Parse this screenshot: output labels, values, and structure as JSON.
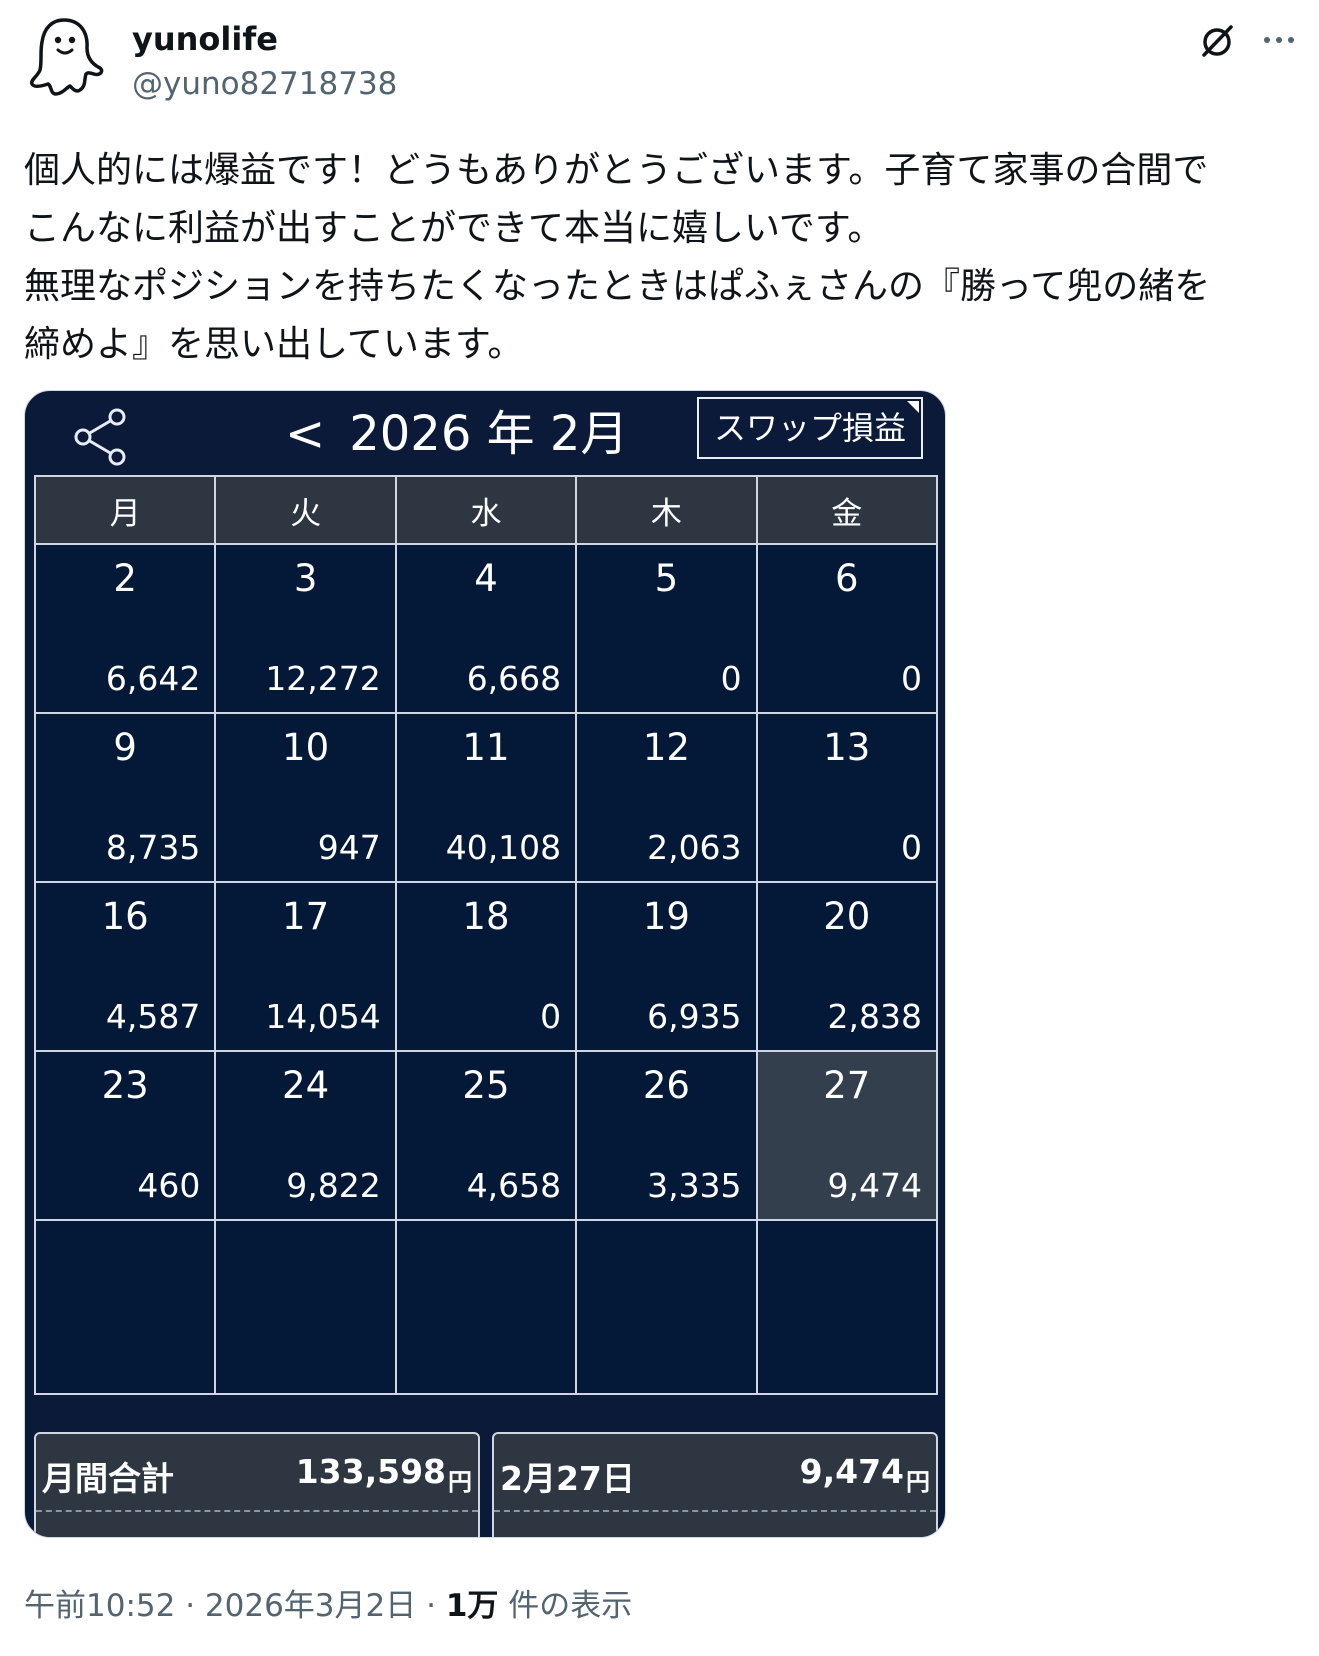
{
  "author": {
    "name": "yunolife",
    "handle": "@yuno82718738",
    "avatar_icon": "ghost-avatar-icon"
  },
  "header_icons": {
    "grok": "grok-icon",
    "more": "more-options-icon"
  },
  "post": {
    "lines": [
      "個人的には爆益です！どうもありがとうございます。子育て家事の合間で",
      "こんなに利益が出すことができて本当に嬉しいです。",
      "無理なポジションを持ちたくなったときはぱふぇさんの『勝って兜の緒を",
      "締めよ』を思い出しています。"
    ]
  },
  "app": {
    "share_icon": "share-icon",
    "prev": "<",
    "month_title": "2026 年 2月",
    "swap_button": "スワップ損益",
    "weekdays": [
      "月",
      "火",
      "水",
      "木",
      "金"
    ],
    "weeks": [
      [
        {
          "day": "2",
          "value": "6,642"
        },
        {
          "day": "3",
          "value": "12,272"
        },
        {
          "day": "4",
          "value": "6,668"
        },
        {
          "day": "5",
          "value": "0"
        },
        {
          "day": "6",
          "value": "0"
        }
      ],
      [
        {
          "day": "9",
          "value": "8,735"
        },
        {
          "day": "10",
          "value": "947"
        },
        {
          "day": "11",
          "value": "40,108"
        },
        {
          "day": "12",
          "value": "2,063"
        },
        {
          "day": "13",
          "value": "0"
        }
      ],
      [
        {
          "day": "16",
          "value": "4,587"
        },
        {
          "day": "17",
          "value": "14,054"
        },
        {
          "day": "18",
          "value": "0"
        },
        {
          "day": "19",
          "value": "6,935"
        },
        {
          "day": "20",
          "value": "2,838"
        }
      ],
      [
        {
          "day": "23",
          "value": "460"
        },
        {
          "day": "24",
          "value": "9,822"
        },
        {
          "day": "25",
          "value": "4,658"
        },
        {
          "day": "26",
          "value": "3,335"
        },
        {
          "day": "27",
          "value": "9,474",
          "selected": true
        }
      ]
    ],
    "summary": {
      "month_label": "月間合計",
      "month_total": "133,598",
      "day_label": "2月27日",
      "day_total": "9,474",
      "unit": "円"
    }
  },
  "meta": {
    "time_date": "午前10:52 · 2026年3月2日 · ",
    "views_count": "1万",
    "views_label": " 件の表示"
  }
}
